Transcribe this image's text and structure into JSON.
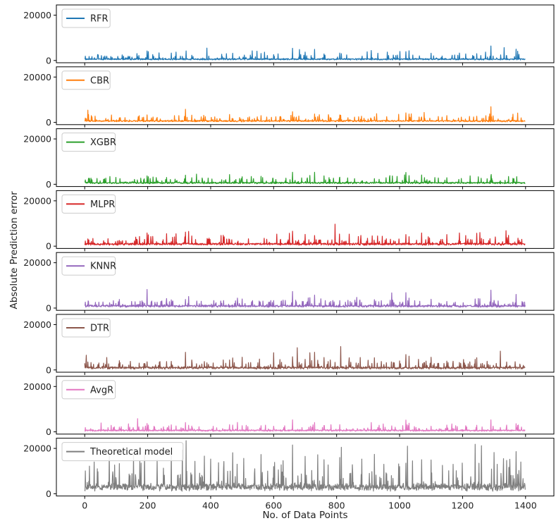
{
  "chart_data": {
    "type": "line",
    "layout": "8 stacked panels sharing x axis",
    "xlabel": "No. of Data Points",
    "ylabel": "Absolute  Prediction  error",
    "xlim": [
      -90,
      1490
    ],
    "xticks": [
      0,
      200,
      400,
      600,
      800,
      1000,
      1200,
      1400
    ],
    "xtick_labels": [
      "0",
      "200",
      "400",
      "600",
      "800",
      "1000",
      "1200",
      "1400"
    ],
    "ylim": [
      -1000,
      24500
    ],
    "yticks": [
      0,
      20000
    ],
    "ytick_labels": [
      "0",
      "20000"
    ],
    "legend_location": "upper left",
    "n_points": 1400,
    "panels": [
      {
        "name": "RFR",
        "color": "#1f77b4",
        "baseline": 420,
        "noise": 480,
        "typical_max": 4500,
        "peaks": [
          [
            2,
            1900
          ],
          [
            60,
            1600
          ],
          [
            105,
            1800
          ],
          [
            150,
            1500
          ],
          [
            198,
            4200
          ],
          [
            202,
            3900
          ],
          [
            275,
            3300
          ],
          [
            290,
            3700
          ],
          [
            322,
            4200
          ],
          [
            340,
            2300
          ],
          [
            450,
            3000
          ],
          [
            470,
            3200
          ],
          [
            560,
            3100
          ],
          [
            600,
            2600
          ],
          [
            660,
            5400
          ],
          [
            700,
            3700
          ],
          [
            730,
            4900
          ],
          [
            760,
            2900
          ],
          [
            810,
            3300
          ],
          [
            815,
            3000
          ],
          [
            910,
            4400
          ],
          [
            1020,
            3900
          ],
          [
            1030,
            4300
          ],
          [
            1100,
            3200
          ],
          [
            1190,
            3300
          ],
          [
            1210,
            2900
          ],
          [
            1245,
            3000
          ],
          [
            1290,
            6400
          ],
          [
            1370,
            5000
          ],
          [
            1375,
            4100
          ]
        ]
      },
      {
        "name": "CBR",
        "color": "#ff7f0e",
        "baseline": 450,
        "noise": 500,
        "typical_max": 4500,
        "peaks": [
          [
            2,
            1900
          ],
          [
            110,
            2000
          ],
          [
            198,
            3300
          ],
          [
            230,
            2200
          ],
          [
            285,
            3000
          ],
          [
            320,
            5800
          ],
          [
            340,
            3200
          ],
          [
            460,
            3500
          ],
          [
            560,
            3000
          ],
          [
            620,
            2500
          ],
          [
            660,
            4700
          ],
          [
            680,
            2800
          ],
          [
            730,
            3700
          ],
          [
            810,
            3300
          ],
          [
            870,
            2500
          ],
          [
            920,
            2500
          ],
          [
            1020,
            4200
          ],
          [
            1030,
            3700
          ],
          [
            1150,
            3000
          ],
          [
            1245,
            2700
          ],
          [
            1290,
            6900
          ],
          [
            1360,
            3600
          ],
          [
            1375,
            4100
          ]
        ]
      },
      {
        "name": "XGBR",
        "color": "#2ca02c",
        "baseline": 450,
        "noise": 520,
        "typical_max": 4500,
        "peaks": [
          [
            2,
            1900
          ],
          [
            60,
            2200
          ],
          [
            198,
            3700
          ],
          [
            202,
            3300
          ],
          [
            260,
            3000
          ],
          [
            320,
            4000
          ],
          [
            340,
            2900
          ],
          [
            460,
            4300
          ],
          [
            500,
            3300
          ],
          [
            560,
            3500
          ],
          [
            660,
            5300
          ],
          [
            715,
            3900
          ],
          [
            730,
            5300
          ],
          [
            760,
            3700
          ],
          [
            810,
            3100
          ],
          [
            920,
            2500
          ],
          [
            1020,
            5200
          ],
          [
            1030,
            3800
          ],
          [
            1070,
            4100
          ],
          [
            1150,
            2900
          ],
          [
            1250,
            3300
          ],
          [
            1290,
            3500
          ],
          [
            1360,
            2600
          ]
        ]
      },
      {
        "name": "MLPR",
        "color": "#d62728",
        "baseline": 700,
        "noise": 700,
        "typical_max": 5000,
        "peaks": [
          [
            2,
            2300
          ],
          [
            60,
            2400
          ],
          [
            110,
            2500
          ],
          [
            198,
            5800
          ],
          [
            202,
            5000
          ],
          [
            260,
            5500
          ],
          [
            320,
            6200
          ],
          [
            330,
            6500
          ],
          [
            340,
            4500
          ],
          [
            440,
            4800
          ],
          [
            460,
            2900
          ],
          [
            570,
            3500
          ],
          [
            610,
            5300
          ],
          [
            650,
            5700
          ],
          [
            660,
            6600
          ],
          [
            700,
            5200
          ],
          [
            730,
            4700
          ],
          [
            795,
            9700
          ],
          [
            840,
            5300
          ],
          [
            930,
            4500
          ],
          [
            1020,
            5100
          ],
          [
            1030,
            4200
          ],
          [
            1070,
            5800
          ],
          [
            1150,
            5100
          ],
          [
            1190,
            5800
          ],
          [
            1210,
            4700
          ],
          [
            1245,
            5700
          ],
          [
            1255,
            6000
          ],
          [
            1340,
            2700
          ],
          [
            1380,
            2600
          ]
        ]
      },
      {
        "name": "KNNR",
        "color": "#9467bd",
        "baseline": 650,
        "noise": 700,
        "typical_max": 5000,
        "peaks": [
          [
            2,
            2600
          ],
          [
            45,
            2600
          ],
          [
            110,
            3800
          ],
          [
            160,
            2800
          ],
          [
            198,
            8200
          ],
          [
            230,
            2600
          ],
          [
            260,
            4200
          ],
          [
            275,
            3600
          ],
          [
            320,
            3800
          ],
          [
            330,
            5100
          ],
          [
            370,
            3000
          ],
          [
            410,
            3300
          ],
          [
            500,
            4000
          ],
          [
            530,
            2700
          ],
          [
            600,
            3300
          ],
          [
            630,
            3500
          ],
          [
            660,
            7300
          ],
          [
            670,
            3500
          ],
          [
            715,
            4600
          ],
          [
            730,
            5700
          ],
          [
            750,
            4100
          ],
          [
            810,
            3300
          ],
          [
            920,
            3700
          ],
          [
            1020,
            6800
          ],
          [
            1030,
            4400
          ],
          [
            1100,
            3900
          ],
          [
            1150,
            2900
          ],
          [
            1240,
            4000
          ],
          [
            1250,
            4200
          ],
          [
            1290,
            7900
          ],
          [
            1300,
            3400
          ],
          [
            1360,
            2600
          ]
        ]
      },
      {
        "name": "DTR",
        "color": "#8c564b",
        "baseline": 700,
        "noise": 800,
        "typical_max": 5500,
        "peaks": [
          [
            5,
            6500
          ],
          [
            20,
            3300
          ],
          [
            60,
            3000
          ],
          [
            70,
            5500
          ],
          [
            110,
            4100
          ],
          [
            145,
            3800
          ],
          [
            198,
            3600
          ],
          [
            260,
            3700
          ],
          [
            275,
            3800
          ],
          [
            320,
            7800
          ],
          [
            340,
            4400
          ],
          [
            380,
            3700
          ],
          [
            440,
            4400
          ],
          [
            460,
            4400
          ],
          [
            470,
            5300
          ],
          [
            500,
            5600
          ],
          [
            520,
            3200
          ],
          [
            550,
            3200
          ],
          [
            600,
            7600
          ],
          [
            620,
            4600
          ],
          [
            660,
            5800
          ],
          [
            675,
            9800
          ],
          [
            700,
            4700
          ],
          [
            715,
            7600
          ],
          [
            730,
            7800
          ],
          [
            740,
            4300
          ],
          [
            760,
            5500
          ],
          [
            780,
            4400
          ],
          [
            813,
            10300
          ],
          [
            840,
            5400
          ],
          [
            875,
            5500
          ],
          [
            900,
            4300
          ],
          [
            920,
            5400
          ],
          [
            1000,
            4000
          ],
          [
            1020,
            6800
          ],
          [
            1030,
            6100
          ],
          [
            1060,
            4700
          ],
          [
            1100,
            5600
          ],
          [
            1150,
            3900
          ],
          [
            1190,
            3300
          ],
          [
            1240,
            4700
          ],
          [
            1245,
            5400
          ],
          [
            1320,
            8300
          ],
          [
            1340,
            3500
          ]
        ]
      },
      {
        "name": "AvgR",
        "color": "#e377c2",
        "baseline": 450,
        "noise": 500,
        "typical_max": 4500,
        "peaks": [
          [
            2,
            1900
          ],
          [
            110,
            2100
          ],
          [
            198,
            3700
          ],
          [
            202,
            3000
          ],
          [
            275,
            3100
          ],
          [
            290,
            2600
          ],
          [
            320,
            4100
          ],
          [
            330,
            2900
          ],
          [
            460,
            3200
          ],
          [
            470,
            3000
          ],
          [
            500,
            2700
          ],
          [
            560,
            2700
          ],
          [
            600,
            2500
          ],
          [
            660,
            5300
          ],
          [
            730,
            4100
          ],
          [
            760,
            2800
          ],
          [
            810,
            3200
          ],
          [
            910,
            4100
          ],
          [
            1020,
            5200
          ],
          [
            1030,
            3800
          ],
          [
            1150,
            3000
          ],
          [
            1210,
            2700
          ],
          [
            1245,
            2900
          ],
          [
            1290,
            5300
          ],
          [
            1370,
            3600
          ],
          [
            1375,
            2800
          ]
        ]
      },
      {
        "name": "Theoretical model",
        "color": "#7f7f7f",
        "baseline": 2200,
        "noise": 2400,
        "typical_max": 15000,
        "peaks": [
          [
            30,
            14000
          ],
          [
            40,
            11000
          ],
          [
            78,
            18500
          ],
          [
            110,
            13300
          ],
          [
            155,
            17000
          ],
          [
            175,
            14300
          ],
          [
            190,
            18300
          ],
          [
            230,
            15000
          ],
          [
            250,
            11300
          ],
          [
            275,
            19000
          ],
          [
            310,
            19300
          ],
          [
            322,
            23400
          ],
          [
            350,
            14300
          ],
          [
            380,
            16600
          ],
          [
            400,
            15300
          ],
          [
            425,
            13700
          ],
          [
            470,
            18100
          ],
          [
            505,
            15600
          ],
          [
            540,
            11000
          ],
          [
            560,
            17300
          ],
          [
            600,
            12000
          ],
          [
            630,
            14600
          ],
          [
            660,
            21500
          ],
          [
            700,
            16500
          ],
          [
            740,
            17200
          ],
          [
            760,
            15000
          ],
          [
            810,
            16000
          ],
          [
            815,
            20500
          ],
          [
            850,
            12800
          ],
          [
            880,
            15300
          ],
          [
            920,
            17400
          ],
          [
            950,
            13000
          ],
          [
            1000,
            12000
          ],
          [
            1020,
            13500
          ],
          [
            1025,
            21000
          ],
          [
            1070,
            15000
          ],
          [
            1100,
            14900
          ],
          [
            1170,
            13000
          ],
          [
            1240,
            21800
          ],
          [
            1260,
            21200
          ],
          [
            1300,
            18200
          ],
          [
            1310,
            13000
          ],
          [
            1330,
            15500
          ],
          [
            1340,
            14700
          ],
          [
            1350,
            15200
          ],
          [
            1370,
            18600
          ],
          [
            1385,
            14000
          ]
        ]
      }
    ]
  }
}
